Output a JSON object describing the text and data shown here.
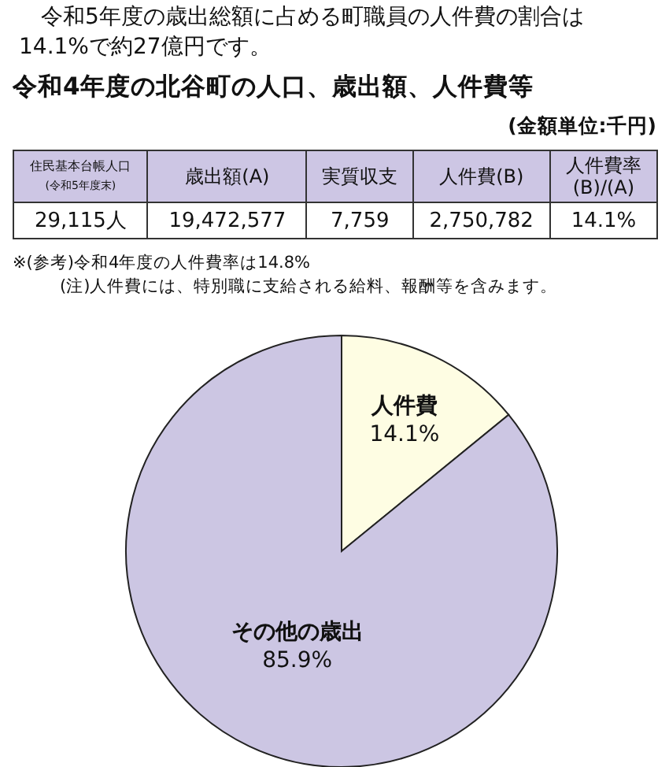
{
  "chart_data": [
    {
      "type": "other",
      "title": "令和4年度の北谷町の人口、歳出額、人件費等",
      "subtitle": "(金額単位:千円)",
      "categories": [
        "住民基本台帳人口\n(令和5年度末)",
        "歳出額(A)",
        "実質収支",
        "人件費(B)",
        "人件費率\n(B)/(A)"
      ],
      "value_labels": [
        "29,115人",
        "19,472,577",
        "7,759",
        "2,750,782",
        "14.1%"
      ],
      "color": "#cdc6e4",
      "annotations": [
        "令和5年度の歳出総額に占める町職員の人件費の割合は14.1%で約27億円です。",
        "※(参考)令和4年度の人件費率は14.8%",
        "(注)人件費には、特別職に支給される給料、報酬等を含みます。"
      ]
    },
    {
      "type": "pie",
      "categories": [
        "人件費",
        "その他の歳出"
      ],
      "values": [
        14.1,
        85.9
      ],
      "value_labels": [
        "14.1%",
        "85.9%"
      ],
      "colors": [
        "#fefde3",
        "#ccc6e3"
      ],
      "data_labels": true
    }
  ]
}
